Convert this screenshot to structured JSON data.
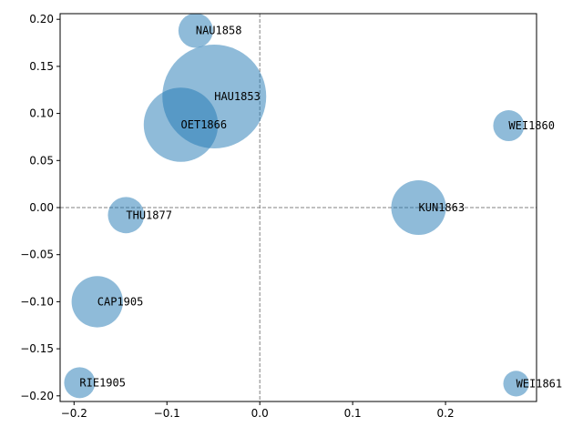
{
  "chart_data": {
    "type": "scatter",
    "title": "",
    "xlabel": "",
    "ylabel": "",
    "xlim": [
      -0.215,
      0.298
    ],
    "ylim": [
      -0.206,
      0.206
    ],
    "x_ticks": [
      -0.2,
      -0.1,
      0.0,
      0.1,
      0.2
    ],
    "x_tick_labels": [
      "−0.2",
      "−0.1",
      "0.0",
      "0.1",
      "0.2"
    ],
    "y_ticks": [
      0.2,
      0.15,
      0.1,
      0.05,
      0.0,
      -0.05,
      -0.1,
      -0.15,
      -0.2
    ],
    "y_tick_labels": [
      "0.20",
      "0.15",
      "0.10",
      "0.05",
      "0.00",
      "−0.05",
      "−0.10",
      "−0.15",
      "−0.20"
    ],
    "grid": false,
    "reference_lines": {
      "x": 0.0,
      "y": 0.0,
      "style": "dashed",
      "color": "#808080"
    },
    "bubble_color": "#1f77b4",
    "bubble_alpha": 0.5,
    "points": [
      {
        "label": "NAU1858",
        "x": -0.069,
        "y": 0.188,
        "size": 1
      },
      {
        "label": "HAU1853",
        "x": -0.049,
        "y": 0.118,
        "size": 9
      },
      {
        "label": "OET1866",
        "x": -0.085,
        "y": 0.088,
        "size": 4.6
      },
      {
        "label": "WEI1860",
        "x": 0.268,
        "y": 0.087,
        "size": 0.8
      },
      {
        "label": "KUN1863",
        "x": 0.171,
        "y": 0.0,
        "size": 2.5
      },
      {
        "label": "THU1877",
        "x": -0.144,
        "y": -0.008,
        "size": 1.1
      },
      {
        "label": "CAP1905",
        "x": -0.175,
        "y": -0.1,
        "size": 2.2
      },
      {
        "label": "RIE1905",
        "x": -0.194,
        "y": -0.186,
        "size": 0.8
      },
      {
        "label": "WEI1861",
        "x": 0.276,
        "y": -0.187,
        "size": 0.55
      }
    ]
  }
}
